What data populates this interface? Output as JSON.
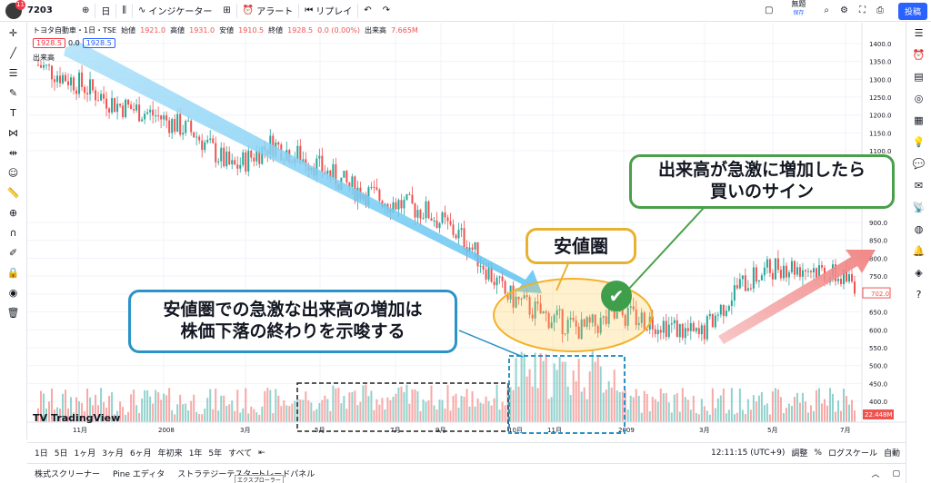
{
  "topbar": {
    "symbol": "7203",
    "interval": "日",
    "indicators": "インジケーター",
    "alert": "アラート",
    "replay": "リプレイ",
    "unnamed": "無題",
    "saved": "保存",
    "post": "投稿",
    "notif": "11"
  },
  "legend": {
    "name": "トヨタ自動車・1日・TSE",
    "open": "始値",
    "open_v": "1921.0",
    "high": "高値",
    "high_v": "1931.0",
    "low": "安値",
    "low_v": "1910.5",
    "close": "終値",
    "close_v": "1928.5",
    "chg": "0.0 (0.00%)",
    "vol": "出来高",
    "vol_v": "7.665M",
    "p1": "1928.5",
    "p2": "0.0",
    "p3": "1928.5",
    "vol_label": "出来高"
  },
  "price_axis": [
    "1400.0",
    "1350.0",
    "1300.0",
    "1250.0",
    "1200.0",
    "1150.0",
    "1100.0",
    "900.0",
    "850.0",
    "800.0",
    "750.0",
    "700.0",
    "650.0",
    "600.0",
    "550.0",
    "500.0",
    "450.0",
    "400.0"
  ],
  "last_price": "702.0",
  "volume_badge": "22.448M",
  "time_axis": [
    "11月",
    "2008",
    "3月",
    "5月",
    "7月",
    "9月",
    "10月",
    "11月",
    "2009",
    "3月",
    "5月",
    "7月"
  ],
  "bottom": {
    "ranges": [
      "1日",
      "5日",
      "1ヶ月",
      "3ヶ月",
      "6ヶ月",
      "年初来",
      "1年",
      "5年",
      "すべて"
    ],
    "time": "12:11:15 (UTC+9)",
    "adjust": "調整",
    "pct": "%",
    "log": "ログスケール",
    "auto": "自動"
  },
  "bottom2": {
    "screener": "株式スクリーナー",
    "pine": "Pine エディタ",
    "tester": "ストラテジーテスター",
    "panel": "トレードパネル",
    "tooltip": "エクスプローラー"
  },
  "annotations": {
    "green": "出来高が急激に増加したら\n買いのサイン",
    "blue": "安値圏での急激な出来高の増加は\n株価下落の終わりを示唆する",
    "gold": "安値圏"
  },
  "tv_logo": "TradingView",
  "colors": {
    "up": "#26a69a",
    "down": "#ef5350",
    "accent": "#2962ff"
  },
  "chart_data": {
    "type": "candlestick",
    "symbol": "トヨタ自動車",
    "trend_points": [
      [
        "2007-10",
        1340
      ],
      [
        "2007-11",
        1290
      ],
      [
        "2007-12",
        1230
      ],
      [
        "2008-01",
        1200
      ],
      [
        "2008-02",
        1150
      ],
      [
        "2008-03",
        1050
      ],
      [
        "2008-04",
        1120
      ],
      [
        "2008-05",
        1070
      ],
      [
        "2008-06",
        1000
      ],
      [
        "2008-07",
        960
      ],
      [
        "2008-08",
        930
      ],
      [
        "2008-09",
        850
      ],
      [
        "2008-10",
        700
      ],
      [
        "2008-11",
        640
      ],
      [
        "2008-12",
        600
      ],
      [
        "2009-01",
        640
      ],
      [
        "2009-02",
        620
      ],
      [
        "2009-03",
        580
      ],
      [
        "2009-04",
        720
      ],
      [
        "2009-05",
        780
      ],
      [
        "2009-06",
        770
      ],
      [
        "2009-07",
        730
      ]
    ],
    "ylim": [
      380,
      1420
    ]
  }
}
